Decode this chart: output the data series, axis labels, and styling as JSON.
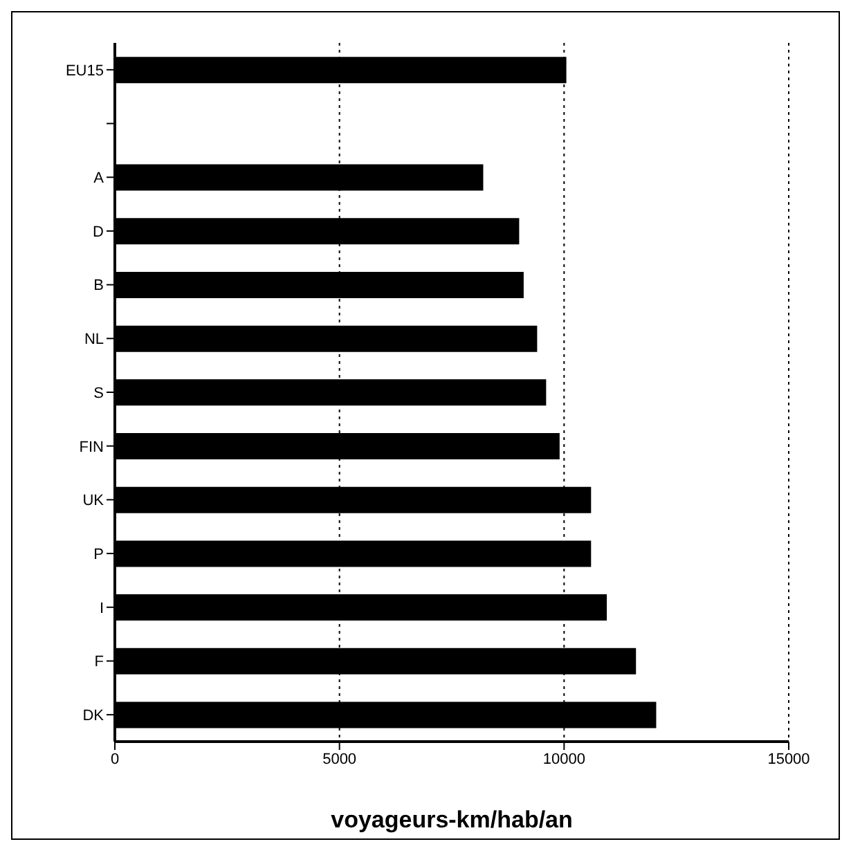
{
  "chart_data": {
    "type": "bar",
    "orientation": "horizontal",
    "xlabel": "voyageurs-km/hab/an",
    "categories": [
      "EU15",
      null,
      "A",
      "D",
      "B",
      "NL",
      "S",
      "FIN",
      "UK",
      "P",
      "I",
      "F",
      "DK"
    ],
    "values": [
      10050,
      null,
      8200,
      9000,
      9100,
      9400,
      9600,
      9900,
      10600,
      10600,
      10950,
      11600,
      12050
    ],
    "color": "#000000",
    "xlim": [
      0,
      15000
    ],
    "xticks": [
      0,
      5000,
      10000,
      15000
    ],
    "grid": "x",
    "legend": false
  }
}
